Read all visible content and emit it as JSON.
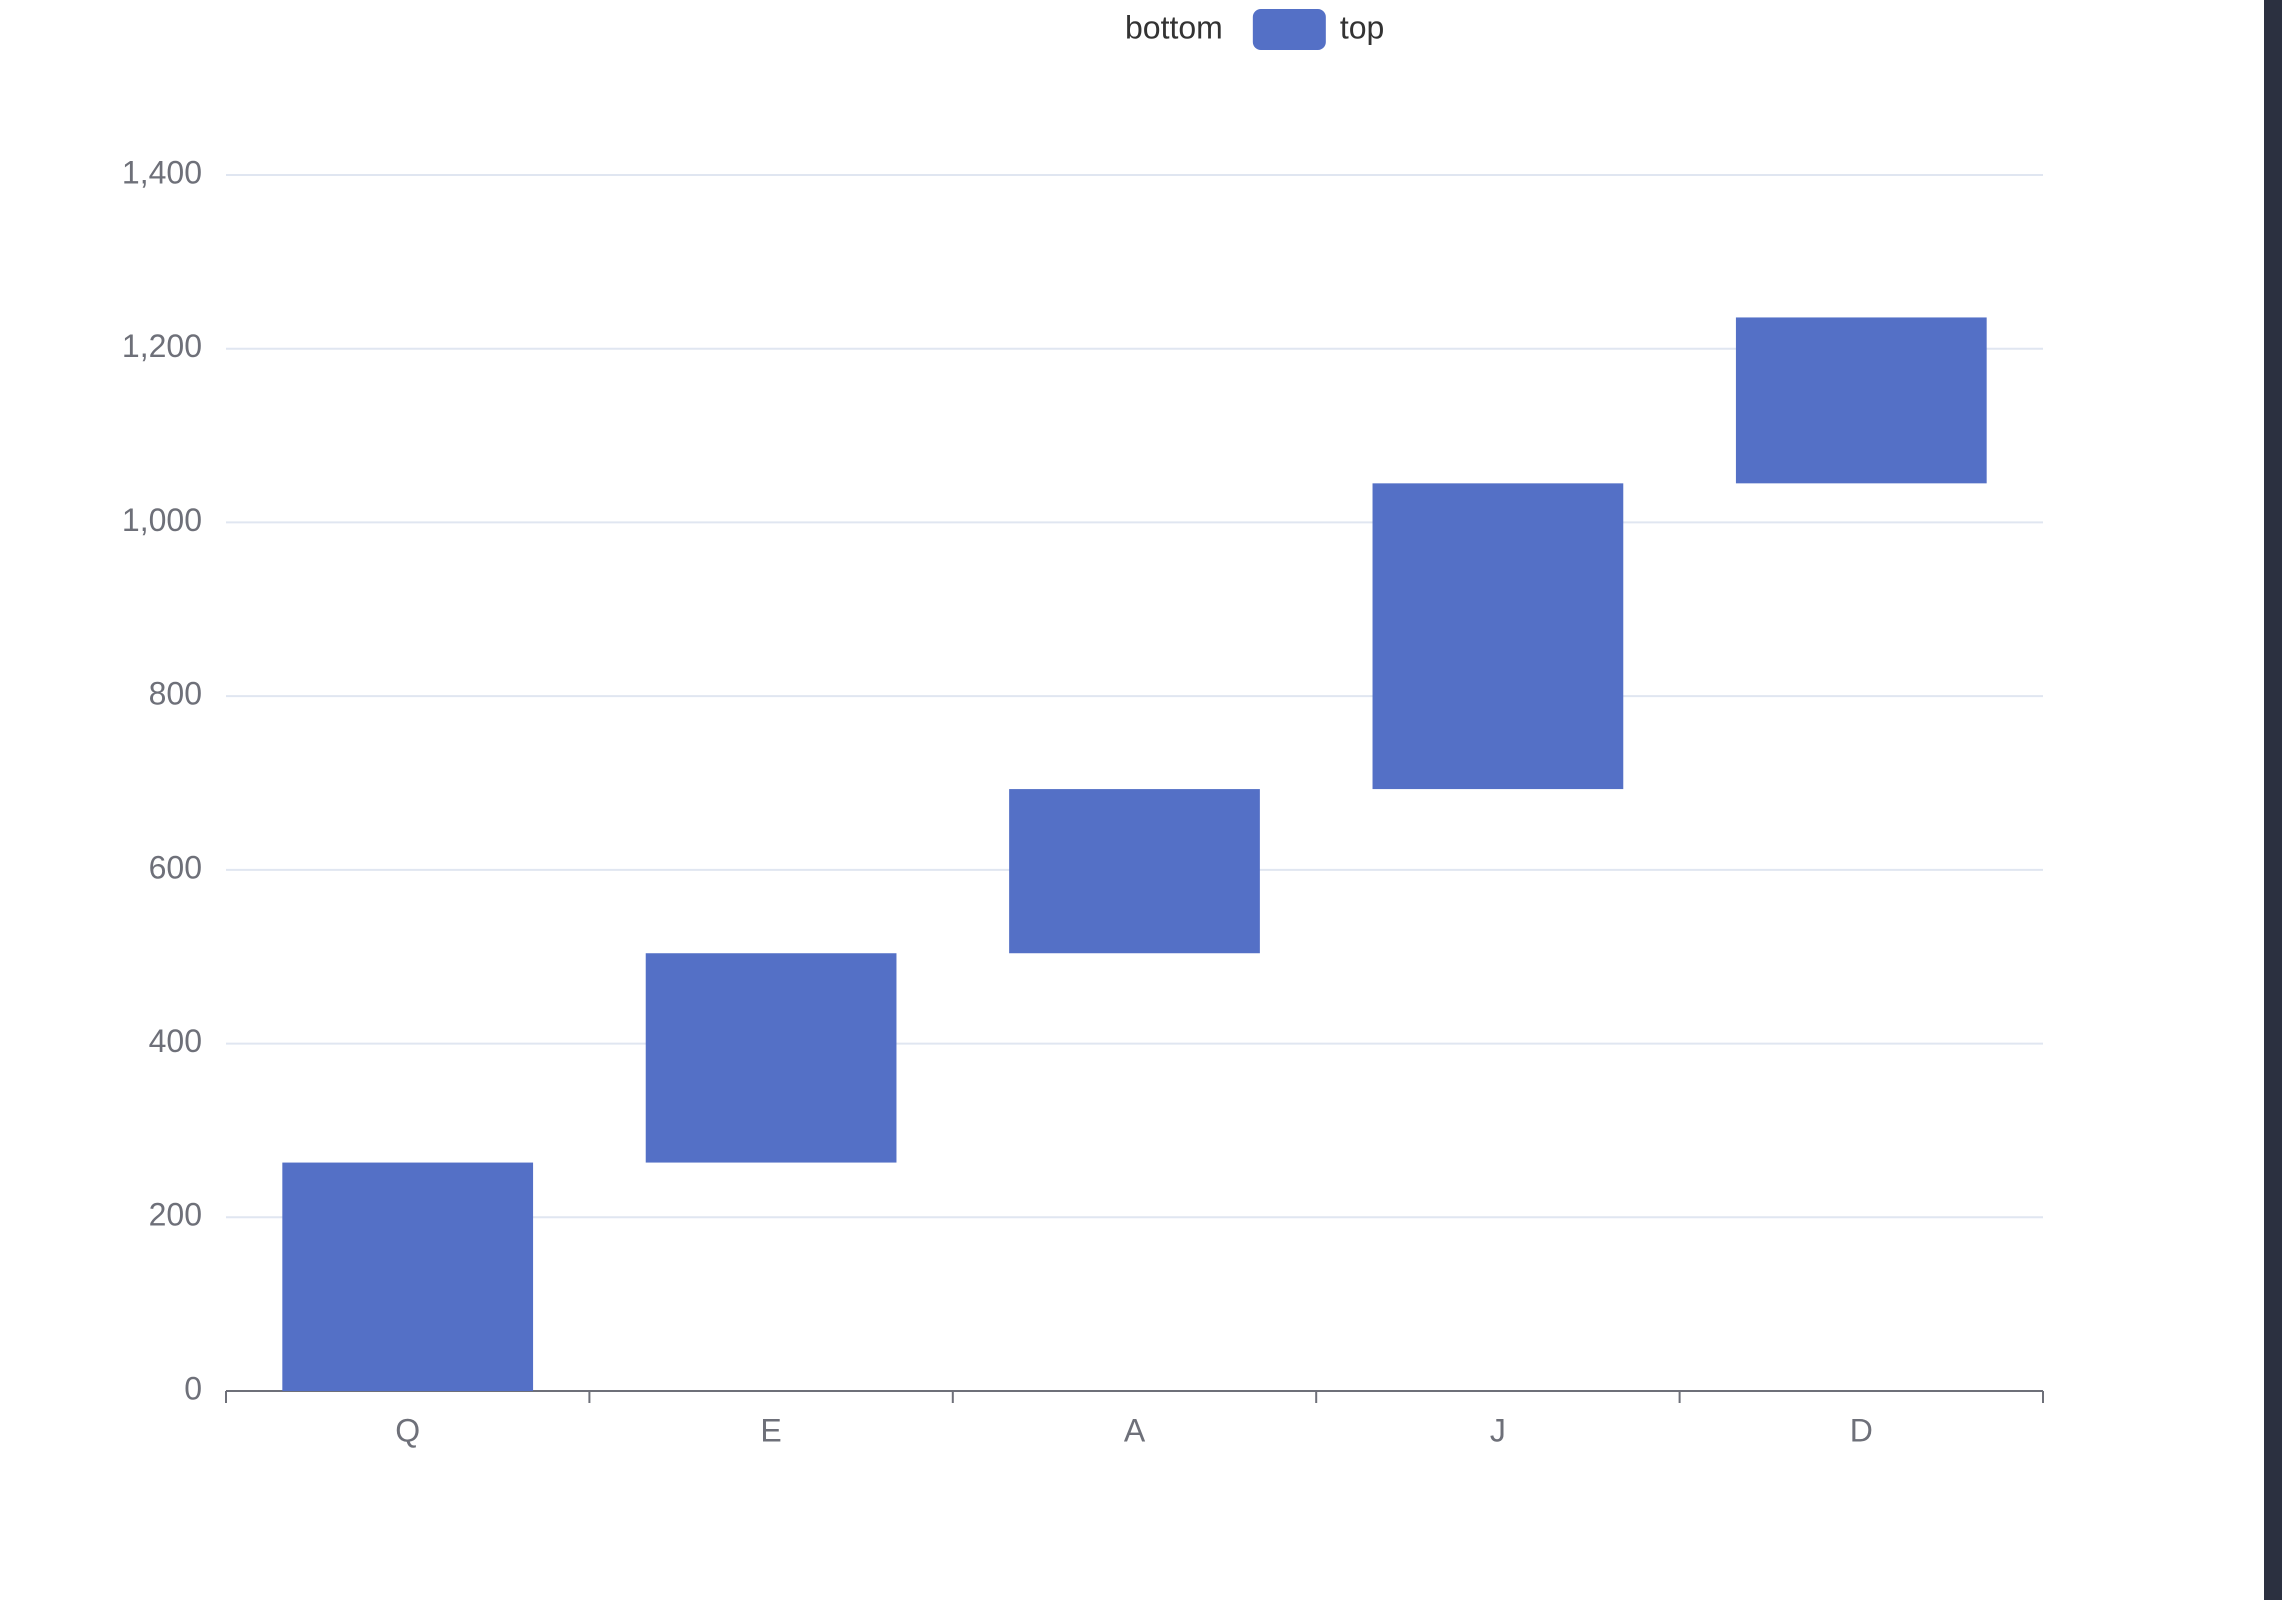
{
  "chart_data": {
    "type": "bar",
    "stacked": true,
    "categories": [
      "Q",
      "E",
      "A",
      "J",
      "D"
    ],
    "series": [
      {
        "name": "bottom",
        "color": "transparent",
        "values": [
          0,
          263,
          504,
          693,
          1045
        ]
      },
      {
        "name": "top",
        "color": "#5470c6",
        "values": [
          263,
          241,
          189,
          352,
          191
        ]
      }
    ],
    "ylim": [
      0,
      1400
    ],
    "yticks": [
      0,
      200,
      400,
      600,
      800,
      {
        "value": 1000,
        "label": "1,000"
      },
      {
        "value": 1200,
        "label": "1,200"
      },
      {
        "value": 1400,
        "label": "1,400"
      }
    ],
    "grid": true,
    "legend": "top"
  }
}
